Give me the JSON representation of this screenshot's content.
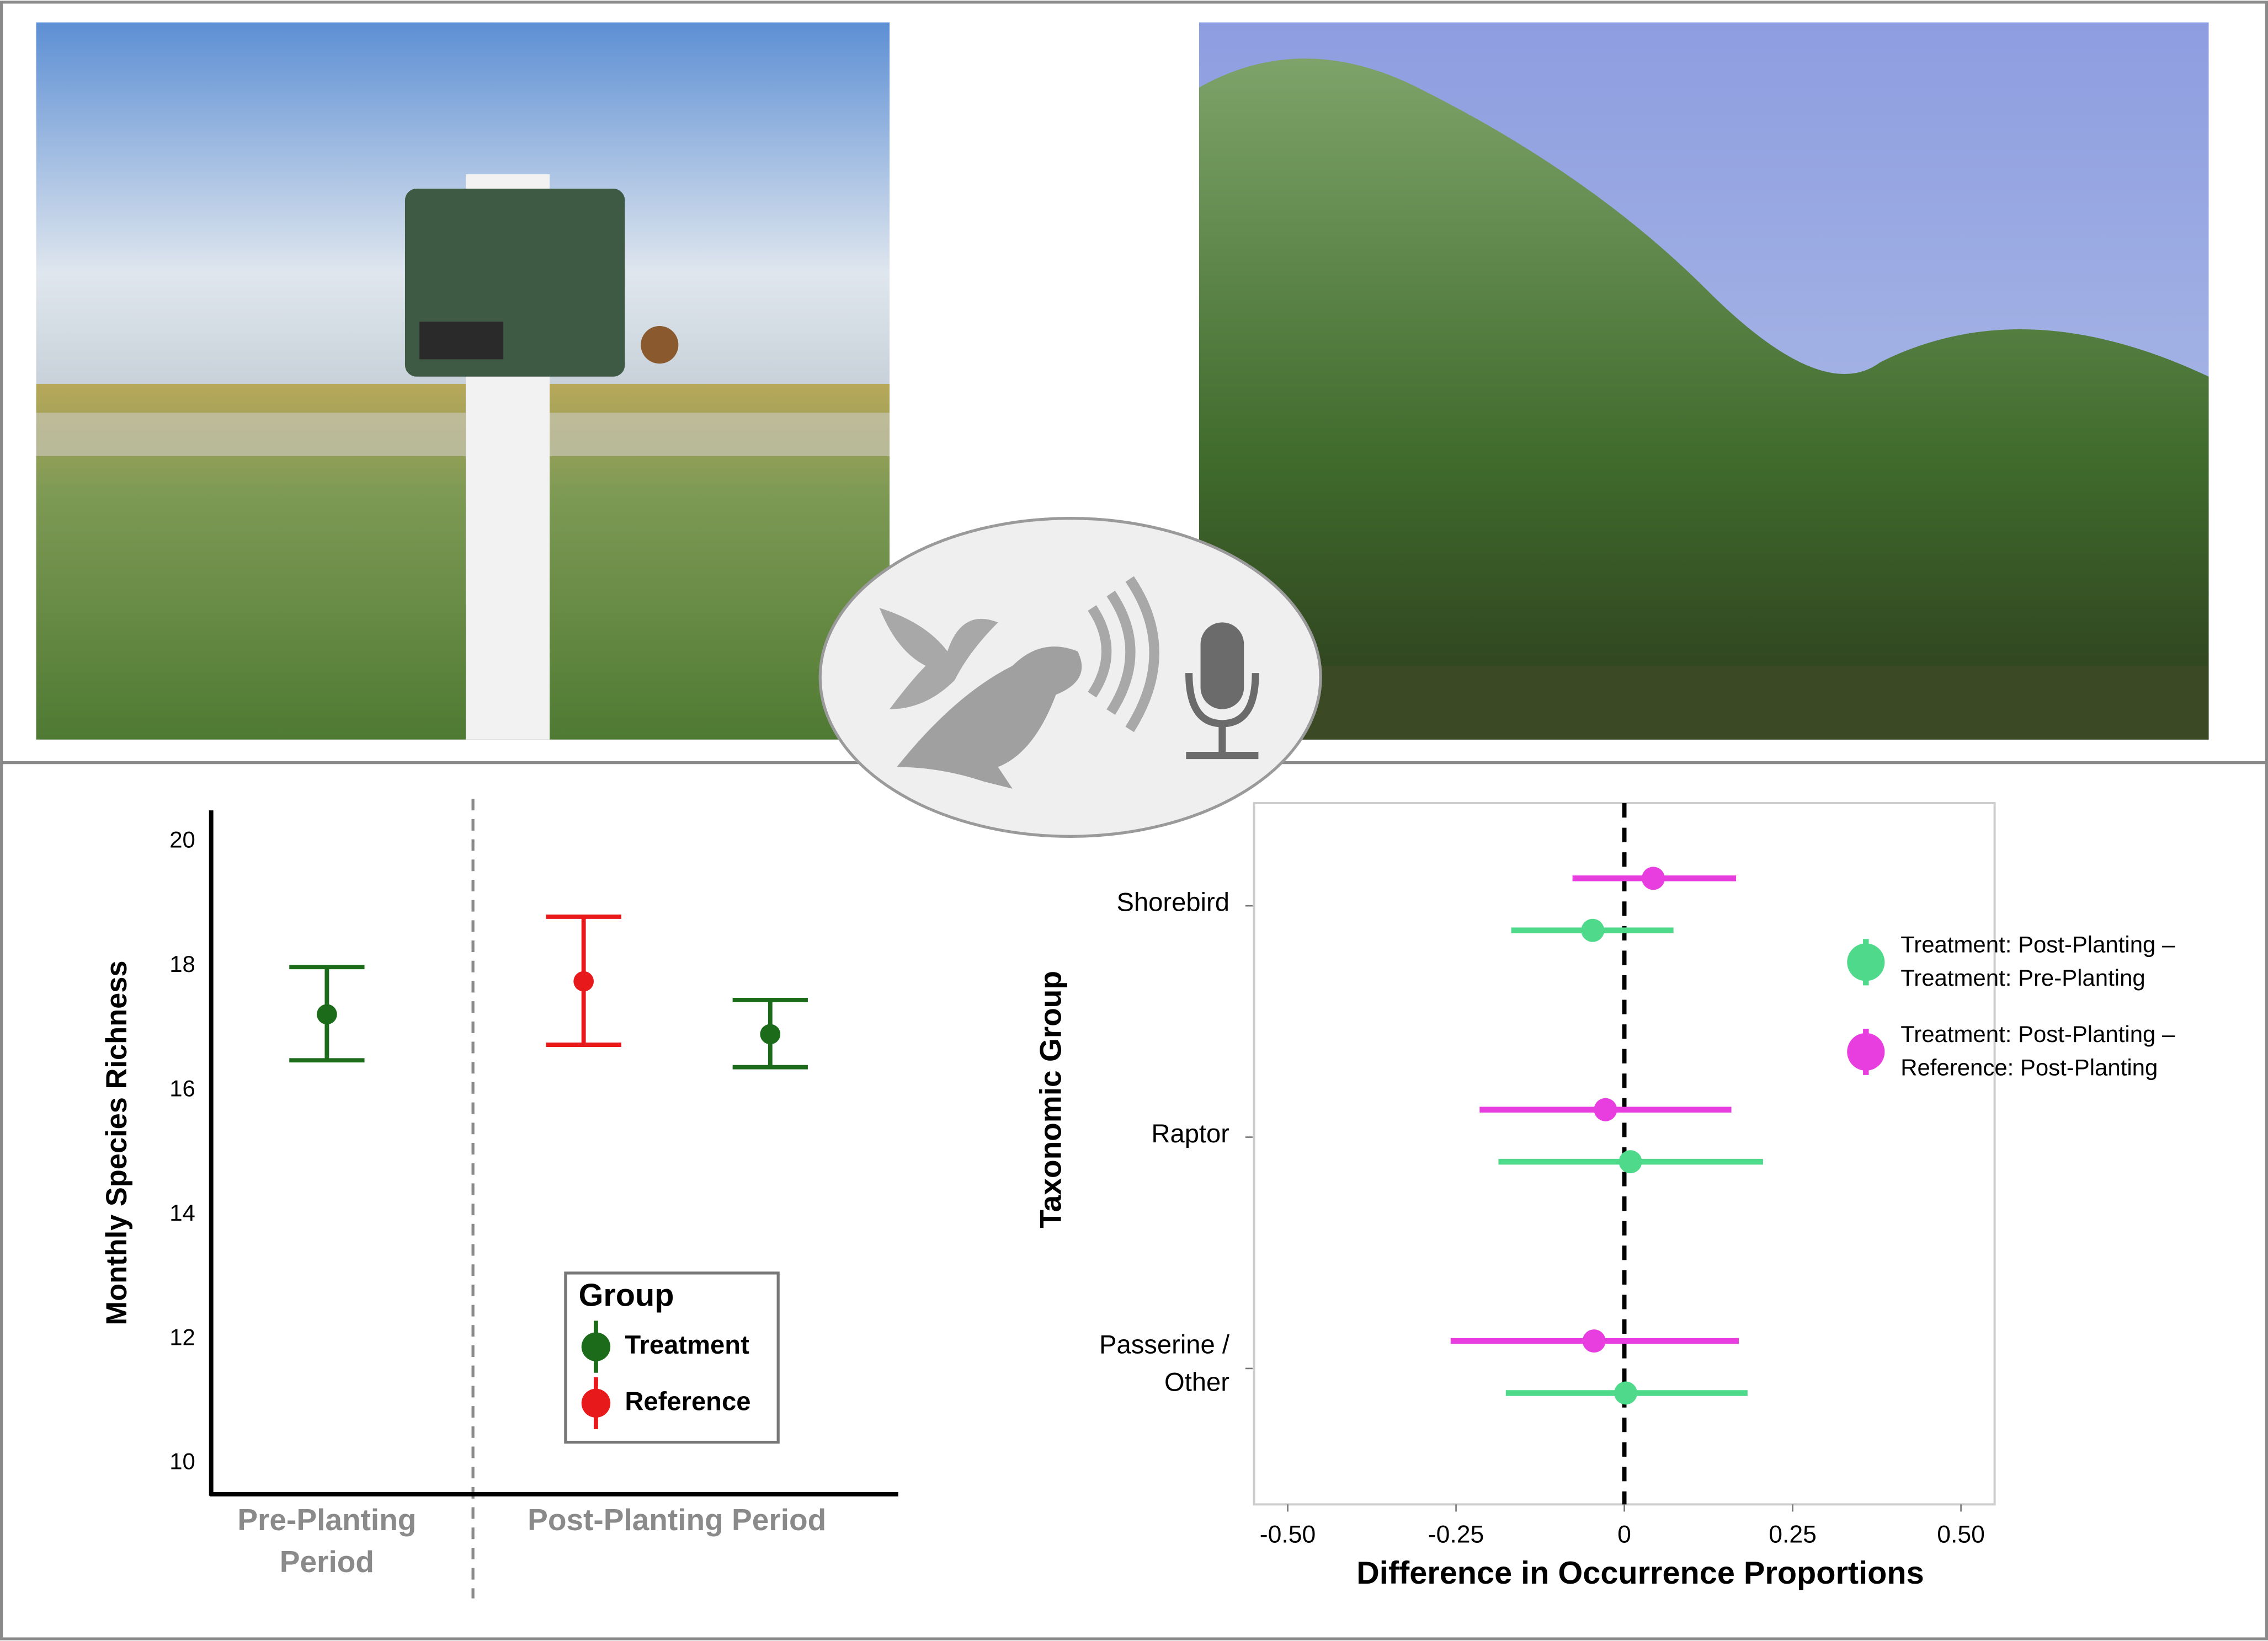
{
  "chart_data": [
    {
      "type": "pointrange",
      "ylabel": "Monthly Species Richness",
      "legend_title": "Group",
      "categories": [
        "Pre-Planting\nPeriod",
        "Post-Planting Period"
      ],
      "series": [
        {
          "name": "Treatment",
          "color": "#1b6b1b",
          "values": [
            17.22,
            16.9
          ],
          "lower": [
            16.48,
            16.37
          ],
          "upper": [
            17.98,
            17.45
          ]
        },
        {
          "name": "Reference",
          "color": "#e8191b",
          "values": [
            null,
            17.75
          ],
          "lower": [
            null,
            16.73
          ],
          "upper": [
            null,
            18.79
          ]
        }
      ],
      "ylim": [
        9.5,
        20.5
      ],
      "yticks": [
        10,
        12,
        14,
        16,
        18,
        20
      ]
    },
    {
      "type": "horizontal-pointrange",
      "xlabel": "Difference in Occurrence Proportions",
      "ylabel": "Taxonomic Group",
      "categories": [
        "Shorebird",
        "Raptor",
        "Passerine /\nOther"
      ],
      "series": [
        {
          "name": "Treatment: Post-Planting –\nTreatment: Pre-Planting",
          "color": "#4fd98a",
          "values": [
            -0.047,
            0.009,
            0.002
          ],
          "lower": [
            -0.168,
            -0.187,
            -0.176
          ],
          "upper": [
            0.073,
            0.206,
            0.183
          ]
        },
        {
          "name": "Treatment: Post-Planting –\nReference: Post-Planting",
          "color": "#e83ee0",
          "values": [
            0.043,
            -0.028,
            -0.045
          ],
          "lower": [
            -0.077,
            -0.215,
            -0.258
          ],
          "upper": [
            0.166,
            0.159,
            0.17
          ]
        }
      ],
      "xlim": [
        -0.55,
        0.55
      ],
      "xticks": [
        {
          "value": -0.5,
          "label": "-0.50"
        },
        -0.25,
        0,
        0.25,
        {
          "value": 0.5,
          "label": "0.50"
        }
      ]
    }
  ]
}
